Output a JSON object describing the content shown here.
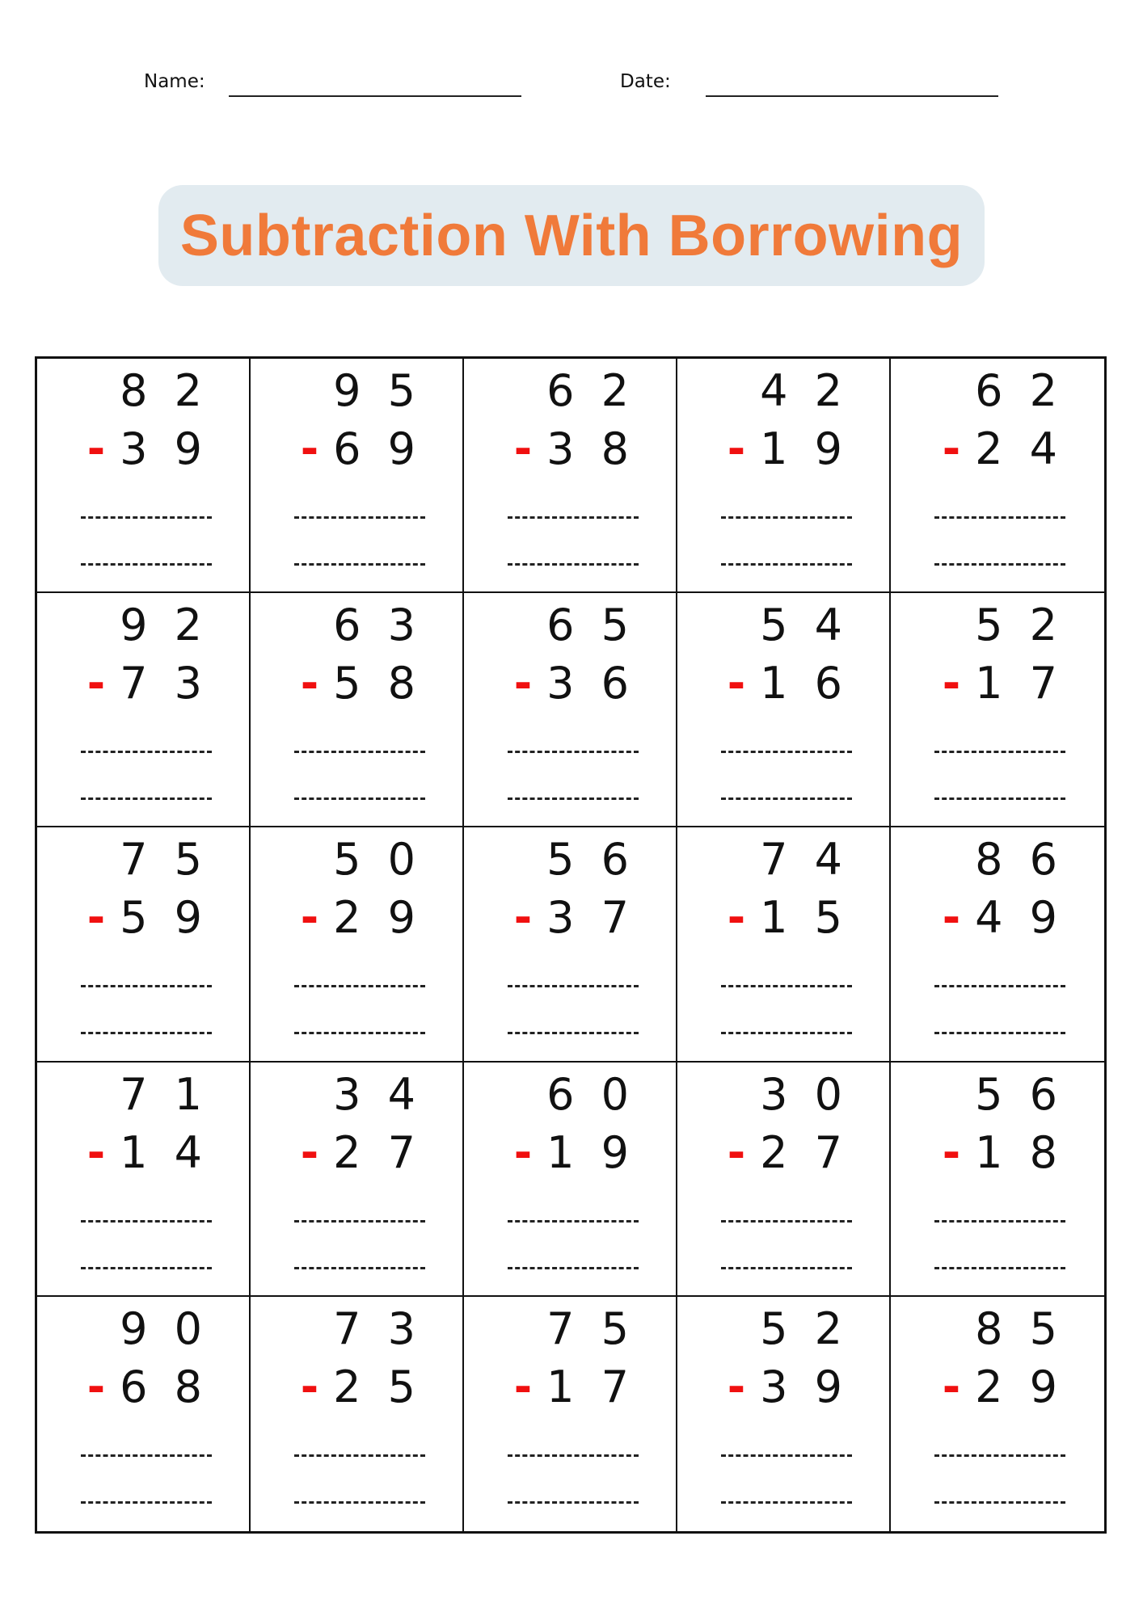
{
  "header": {
    "name_label": "Name:",
    "date_label": "Date:"
  },
  "title": "Subtraction With Borrowing",
  "colors": {
    "title": "#F07A3A",
    "title_bg": "#E2EBF0",
    "minus": "#F01010"
  },
  "operator": "-",
  "problems": [
    {
      "top": "8 2",
      "bottom": "3 9"
    },
    {
      "top": "9 5",
      "bottom": "6 9"
    },
    {
      "top": "6 2",
      "bottom": "3 8"
    },
    {
      "top": "4 2",
      "bottom": "1 9"
    },
    {
      "top": "6 2",
      "bottom": "2 4"
    },
    {
      "top": "9 2",
      "bottom": "7 3"
    },
    {
      "top": "6 3",
      "bottom": "5 8"
    },
    {
      "top": "6 5",
      "bottom": "3 6"
    },
    {
      "top": "5 4",
      "bottom": "1 6"
    },
    {
      "top": "5 2",
      "bottom": "1 7"
    },
    {
      "top": "7 5",
      "bottom": "5 9"
    },
    {
      "top": "5 0",
      "bottom": "2 9"
    },
    {
      "top": "5 6",
      "bottom": "3 7"
    },
    {
      "top": "7 4",
      "bottom": "1 5"
    },
    {
      "top": "8 6",
      "bottom": "4 9"
    },
    {
      "top": "7 1",
      "bottom": "1 4"
    },
    {
      "top": "3 4",
      "bottom": "2 7"
    },
    {
      "top": "6 0",
      "bottom": "1 9"
    },
    {
      "top": "3 0",
      "bottom": "2 7"
    },
    {
      "top": "5 6",
      "bottom": "1 8"
    },
    {
      "top": "9 0",
      "bottom": "6 8"
    },
    {
      "top": "7 3",
      "bottom": "2 5"
    },
    {
      "top": "7 5",
      "bottom": "1 7"
    },
    {
      "top": "5 2",
      "bottom": "3 9"
    },
    {
      "top": "8 5",
      "bottom": "2 9"
    }
  ]
}
